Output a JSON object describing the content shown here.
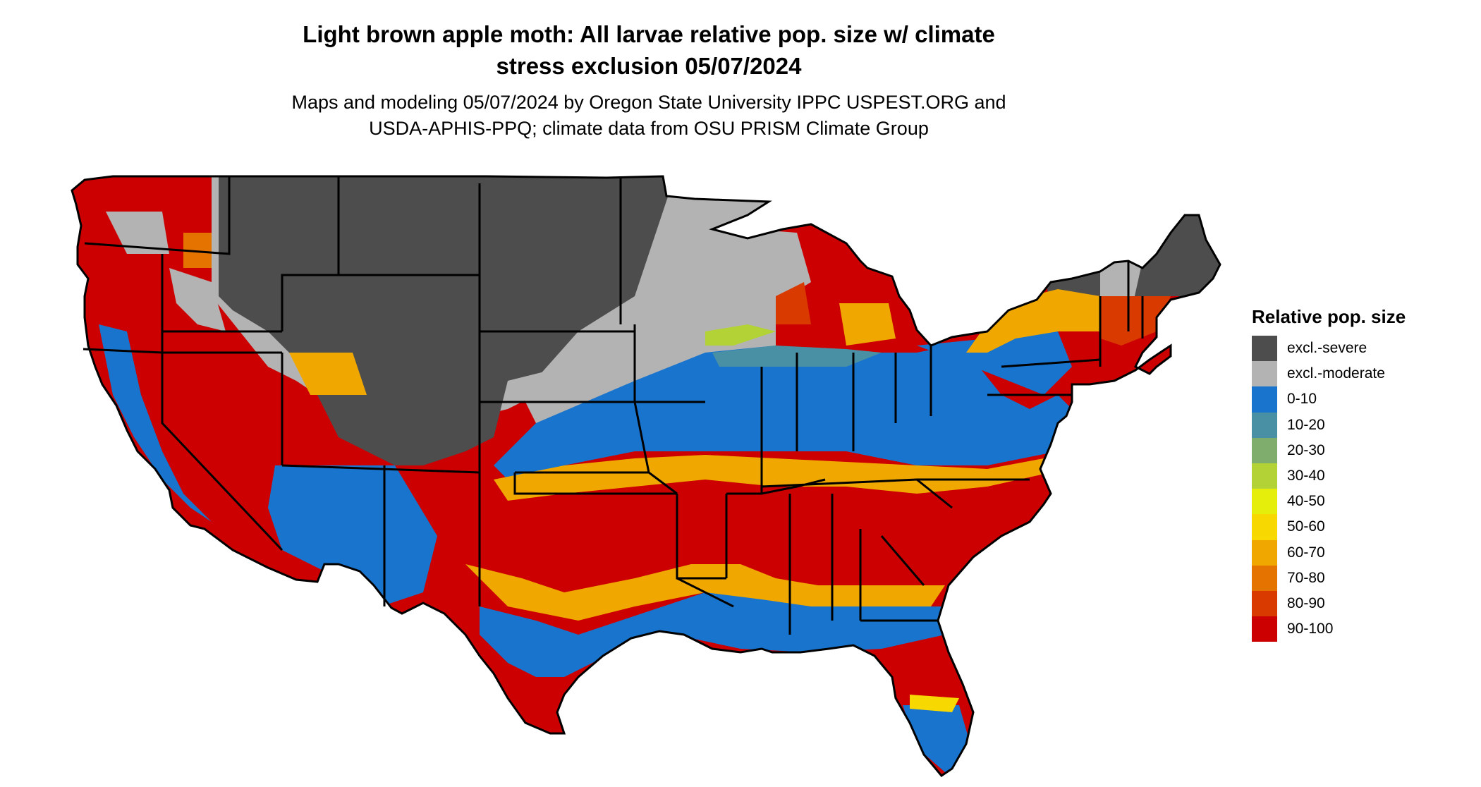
{
  "title_line1": "Light brown apple moth: All larvae relative pop. size w/ climate",
  "title_line2": "stress exclusion 05/07/2024",
  "subtitle_line1": "Maps and modeling 05/07/2024 by Oregon State University IPPC USPEST.ORG and",
  "subtitle_line2": "USDA-APHIS-PPQ; climate data from OSU PRISM Climate Group",
  "legend": {
    "title": "Relative pop. size",
    "items": [
      {
        "label": "excl.-severe",
        "color": "#4d4d4d"
      },
      {
        "label": "excl.-moderate",
        "color": "#b3b3b3"
      },
      {
        "label": "0-10",
        "color": "#1874cd"
      },
      {
        "label": "10-20",
        "color": "#4a90a4"
      },
      {
        "label": "20-30",
        "color": "#7fad6e"
      },
      {
        "label": "30-40",
        "color": "#b2d235"
      },
      {
        "label": "40-50",
        "color": "#e5ee0b"
      },
      {
        "label": "50-60",
        "color": "#f7d800"
      },
      {
        "label": "60-70",
        "color": "#f0a800"
      },
      {
        "label": "70-80",
        "color": "#e57300"
      },
      {
        "label": "80-90",
        "color": "#d93a00"
      },
      {
        "label": "90-100",
        "color": "#cc0000"
      }
    ]
  }
}
